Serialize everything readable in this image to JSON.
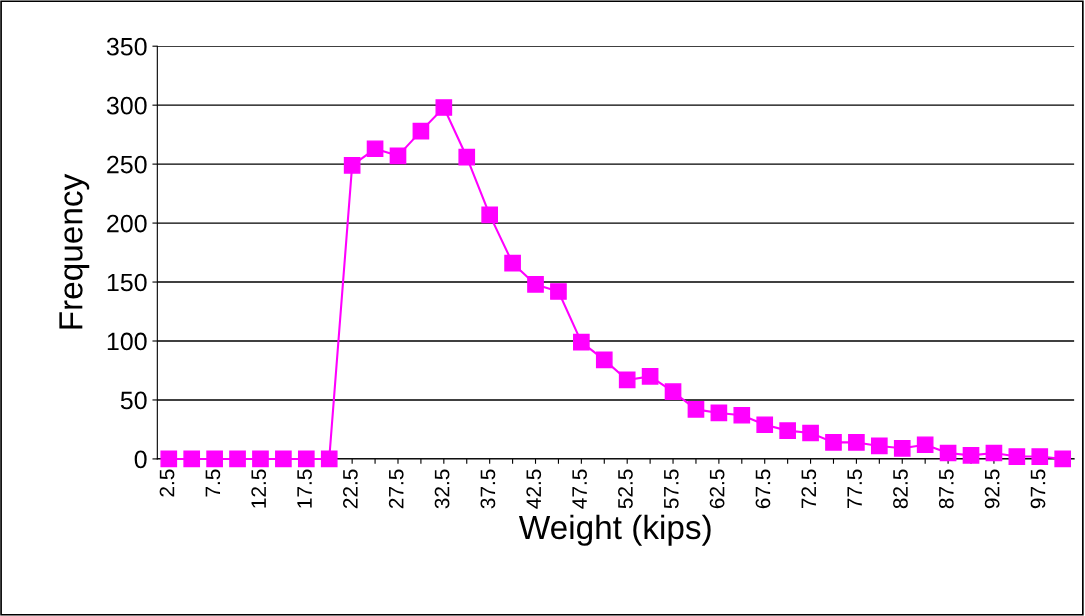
{
  "chart_data": {
    "type": "line",
    "xlabel": "Weight (kips)",
    "ylabel": "Frequency",
    "categories": [
      "2.5",
      null,
      "7.5",
      null,
      "12.5",
      null,
      "17.5",
      null,
      "22.5",
      null,
      "27.5",
      null,
      "32.5",
      null,
      "37.5",
      null,
      "42.5",
      null,
      "47.5",
      null,
      "52.5",
      null,
      "57.5",
      null,
      "62.5",
      null,
      "67.5",
      null,
      "72.5",
      null,
      "77.5",
      null,
      "82.5",
      null,
      "87.5",
      null,
      "92.5",
      null,
      "97.5",
      null
    ],
    "series": [
      {
        "color": "#ff00ff",
        "values": [
          0,
          0,
          0,
          0,
          0,
          0,
          0,
          0,
          249,
          263,
          257,
          278,
          298,
          256,
          207,
          166,
          148,
          142,
          99,
          84,
          67,
          70,
          57,
          42,
          39,
          37,
          29,
          24,
          22,
          14,
          14,
          11,
          9,
          12,
          5,
          3,
          5,
          2,
          2,
          0
        ]
      }
    ],
    "ylim": [
      0,
      350
    ],
    "yticks": [
      0,
      50,
      100,
      150,
      200,
      250,
      300,
      350
    ],
    "grid": "y",
    "marker": "square",
    "line_style": "solid"
  }
}
